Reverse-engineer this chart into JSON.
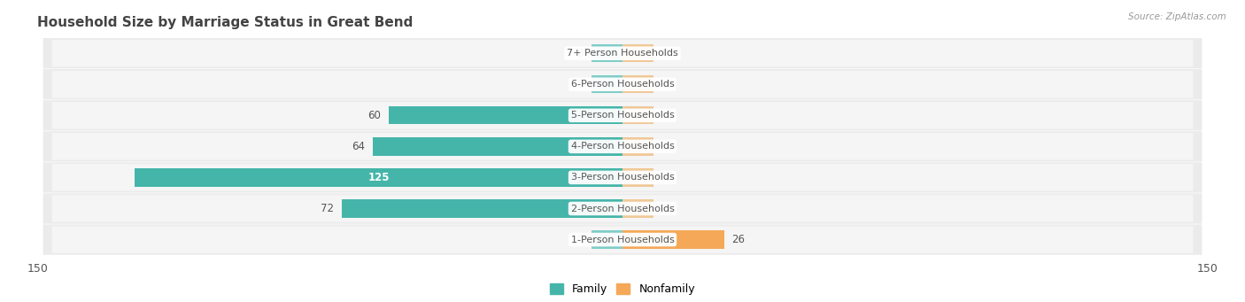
{
  "title": "Household Size by Marriage Status in Great Bend",
  "source": "Source: ZipAtlas.com",
  "categories": [
    "7+ Person Households",
    "6-Person Households",
    "5-Person Households",
    "4-Person Households",
    "3-Person Households",
    "2-Person Households",
    "1-Person Households"
  ],
  "family_values": [
    0,
    0,
    60,
    64,
    125,
    72,
    0
  ],
  "nonfamily_values": [
    0,
    0,
    0,
    0,
    0,
    0,
    26
  ],
  "family_color": "#45b5aa",
  "nonfamily_color": "#f5a858",
  "nonfamily_color_zero": "#f0c898",
  "family_color_zero": "#80cdc8",
  "xlim": 150,
  "bar_height": 0.58,
  "bg_color": "#ffffff",
  "row_bg": "#ebebeb",
  "row_bg_inner": "#f5f5f5",
  "label_color": "#555555",
  "title_color": "#444444"
}
